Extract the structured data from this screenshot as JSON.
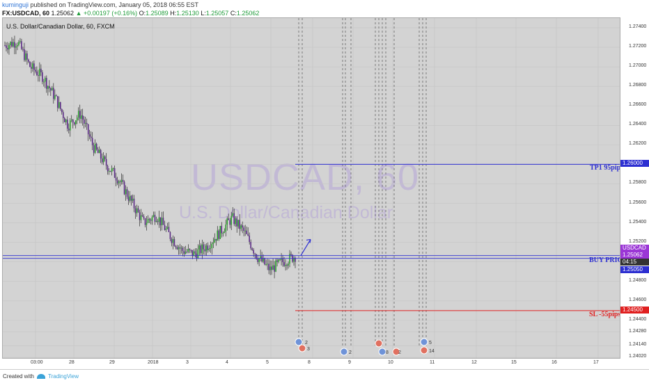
{
  "header": {
    "user": "kuminguji",
    "published": "published on TradingView.com, January 05, 2018 06:55 EST",
    "symbol": "FX:USDCAD, 60",
    "last": "1.25062",
    "change_arrow": "▲",
    "change": "+0.00197 (+0.16%)",
    "o_label": "O:",
    "o": "1.25089",
    "h_label": "H:",
    "h": "1.25130",
    "l_label": "L:",
    "l": "1.25057",
    "c_label": "C:",
    "c": "1.25062"
  },
  "chart_title": "U.S. Dollar/Canadian Dollar, 60, FXCM",
  "watermark": {
    "big": "USDCAD, 60",
    "small": "U.S. Dollar/Canadian Dollar"
  },
  "price_axis": [
    "1.27400",
    "1.27200",
    "1.27000",
    "1.26800",
    "1.26600",
    "1.26400",
    "1.26200",
    "1.26000",
    "1.25800",
    "1.25600",
    "1.25400",
    "1.25200",
    "1.25000",
    "1.24800",
    "1.24600",
    "1.24400",
    "1.24280",
    "1.24140",
    "1.24020"
  ],
  "time_axis": [
    "03:00",
    "28",
    "29",
    "2018",
    "3",
    "4",
    "5",
    "8",
    "9",
    "10",
    "11",
    "12",
    "15",
    "16",
    "17"
  ],
  "price_tags": {
    "tp": "1.26000",
    "symbol": "USDCAD",
    "current": "1.25062",
    "countdown": "04:15",
    "buy": "1.25050",
    "sl": "1.24500"
  },
  "annotations": {
    "tp": "TP1  95pips",
    "buy": "BUY PRICE",
    "sl": "SL  -55pips"
  },
  "events": [
    "2",
    "3",
    "2",
    "8",
    "2",
    "5",
    "14"
  ],
  "colors": {
    "up": "#2ca02c",
    "down": "#5b2a86",
    "tp": "#2d2fd1",
    "sl": "#e02020",
    "current": "#9b36d6"
  },
  "footer": {
    "created": "Created with",
    "brand": "TradingView"
  },
  "chart_data": {
    "type": "candlestick",
    "title": "U.S. Dollar/Canadian Dollar, 60, FXCM",
    "ylim": [
      1.24,
      1.275
    ],
    "approx_close_path": [
      1.2722,
      1.2726,
      1.27,
      1.269,
      1.2668,
      1.264,
      1.2652,
      1.2618,
      1.26,
      1.2585,
      1.2562,
      1.254,
      1.2548,
      1.2528,
      1.2512,
      1.2508,
      1.2516,
      1.253,
      1.2545,
      1.253,
      1.2505,
      1.2492,
      1.25,
      1.2506
    ],
    "levels": {
      "tp1": 1.26,
      "buy": 1.2505,
      "sl": 1.245,
      "current": 1.25062
    }
  }
}
